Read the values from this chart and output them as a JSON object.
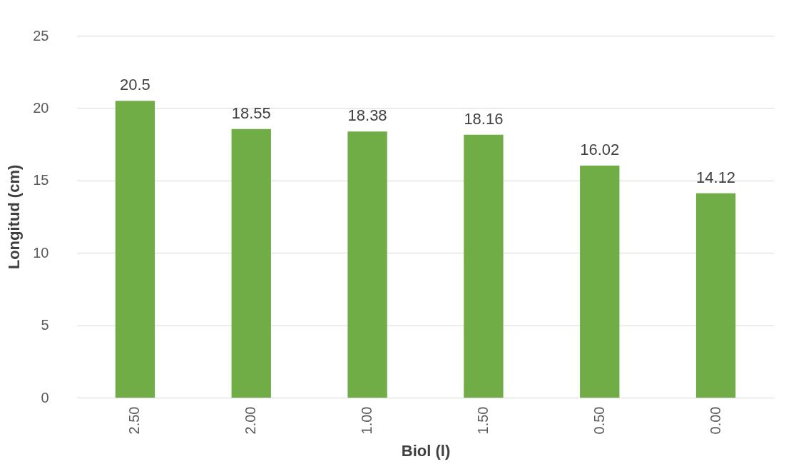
{
  "chart_data": {
    "type": "bar",
    "xlabel": "Biol (l)",
    "ylabel": "Longitud (cm)",
    "categories": [
      "2.50",
      "2.00",
      "1.00",
      "1.50",
      "0.50",
      "0.00"
    ],
    "values": [
      20.5,
      18.55,
      18.38,
      18.16,
      16.02,
      14.12
    ],
    "color": "#70ad47",
    "ylim": [
      0,
      25
    ],
    "yticks": [
      0,
      5,
      10,
      15,
      20,
      25
    ],
    "grid": "y",
    "data_labels": true
  }
}
